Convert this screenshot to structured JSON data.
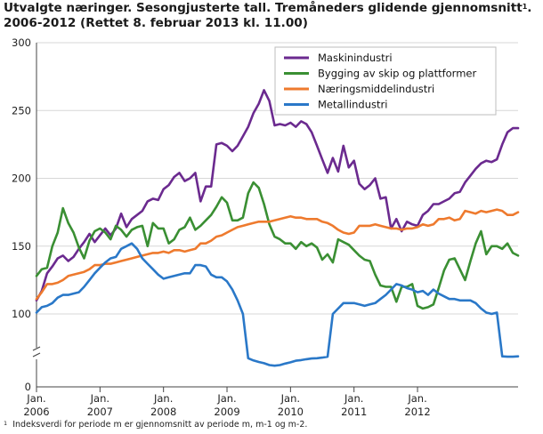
{
  "title": {
    "line1": "Utvalgte næringer. Sesongjusterte tall. Tremåneders glidende gjennomsnitt",
    "sup": "1",
    "line1_end": ".",
    "line2": "2006-2012 (Rettet 8. februar 2013 kl. 11.00)"
  },
  "footnote": {
    "sup": "1",
    "text": "Indeksverdi for periode m er gjennomsnitt av periode m, m-1 og m-2."
  },
  "chart_data": {
    "type": "line",
    "title": "Utvalgte næringer. Sesongjusterte tall. Tremåneders glidende gjennomsnitt1. 2006-2012 (Rettet 8. februar 2013 kl. 11.00)",
    "xlabel": "",
    "ylabel": "",
    "ylim": [
      0,
      300
    ],
    "axis_break": [
      0,
      100
    ],
    "yticks": [
      0,
      100,
      150,
      200,
      250,
      300
    ],
    "xlim": [
      "2006-01",
      "2012-12"
    ],
    "x_tick_labels": [
      {
        "line1": "Jan.",
        "line2": "2006"
      },
      {
        "line1": "Jan.",
        "line2": "2007"
      },
      {
        "line1": "Jan.",
        "line2": "2008"
      },
      {
        "line1": "Jan.",
        "line2": "2009"
      },
      {
        "line1": "Jan.",
        "line2": "2010"
      },
      {
        "line1": "Jan.",
        "line2": "2011"
      },
      {
        "line1": "Jan.",
        "line2": "2012"
      }
    ],
    "grid": "horizontal",
    "legend_position": "top-right",
    "series": [
      {
        "name": "Maskinindustri",
        "color": "#6b2a8f",
        "values": [
          110,
          117,
          130,
          135,
          141,
          143,
          139,
          142,
          148,
          153,
          159,
          153,
          158,
          163,
          158,
          163,
          174,
          164,
          170,
          173,
          176,
          183,
          185,
          184,
          192,
          195,
          201,
          204,
          198,
          200,
          204,
          183,
          194,
          194,
          225,
          226,
          224,
          220,
          224,
          231,
          238,
          248,
          255,
          265,
          257,
          239,
          240,
          239,
          241,
          238,
          242,
          240,
          234,
          224,
          214,
          204,
          215,
          205,
          224,
          208,
          213,
          196,
          192,
          195,
          200,
          185,
          186,
          163,
          170,
          161,
          168,
          166,
          165,
          173,
          176,
          181,
          181,
          183,
          185,
          189,
          190,
          197,
          202,
          207,
          211,
          213,
          212,
          214,
          225,
          234,
          237,
          237
        ]
      },
      {
        "name": "Bygging av skip og plattformer",
        "color": "#3a8f33",
        "values": [
          128,
          133,
          134,
          150,
          160,
          178,
          167,
          160,
          149,
          141,
          154,
          161,
          163,
          160,
          155,
          165,
          162,
          157,
          162,
          164,
          165,
          150,
          167,
          163,
          163,
          152,
          155,
          162,
          164,
          171,
          162,
          165,
          169,
          173,
          179,
          186,
          182,
          169,
          169,
          171,
          189,
          197,
          193,
          181,
          166,
          157,
          155,
          152,
          152,
          148,
          153,
          150,
          152,
          149,
          140,
          144,
          138,
          155,
          153,
          151,
          147,
          143,
          140,
          139,
          129,
          121,
          120,
          120,
          109,
          120,
          120,
          122,
          106,
          104,
          105,
          107,
          119,
          132,
          140,
          141,
          133,
          125,
          139,
          152,
          161,
          144,
          150,
          150,
          148,
          152,
          145,
          143
        ]
      },
      {
        "name": "Næringsmiddelindustri",
        "color": "#ee7a2e",
        "values": [
          111,
          116,
          122,
          122,
          123,
          125,
          128,
          129,
          130,
          131,
          133,
          136,
          136,
          137,
          137,
          138,
          139,
          140,
          141,
          142,
          143,
          144,
          145,
          145,
          146,
          145,
          147,
          147,
          146,
          147,
          148,
          152,
          152,
          154,
          157,
          158,
          160,
          162,
          164,
          165,
          166,
          167,
          168,
          168,
          168,
          169,
          170,
          171,
          172,
          171,
          171,
          170,
          170,
          170,
          168,
          167,
          165,
          162,
          160,
          159,
          160,
          165,
          165,
          165,
          166,
          165,
          164,
          163,
          163,
          162,
          163,
          163,
          164,
          166,
          165,
          166,
          170,
          170,
          171,
          169,
          170,
          176,
          175,
          174,
          176,
          175,
          176,
          177,
          176,
          173,
          173,
          175
        ]
      },
      {
        "name": "Metallindustri",
        "color": "#2a78c8",
        "values": [
          101,
          105,
          106,
          108,
          112,
          114,
          114,
          115,
          116,
          120,
          125,
          130,
          134,
          138,
          141,
          142,
          148,
          150,
          152,
          148,
          141,
          137,
          133,
          129,
          126,
          127,
          128,
          129,
          130,
          130,
          136,
          136,
          135,
          129,
          127,
          127,
          124,
          118,
          110,
          100,
          92,
          85,
          80,
          76,
          70,
          68,
          70,
          75,
          79,
          84,
          86,
          89,
          91,
          92,
          94,
          97,
          100,
          104,
          108,
          108,
          108,
          107,
          106,
          107,
          108,
          111,
          114,
          118,
          122,
          121,
          119,
          118,
          116,
          117,
          114,
          118,
          115,
          113,
          111,
          111,
          110,
          110,
          110,
          108,
          104,
          101,
          100,
          101,
          98,
          97,
          97,
          98
        ]
      }
    ]
  }
}
